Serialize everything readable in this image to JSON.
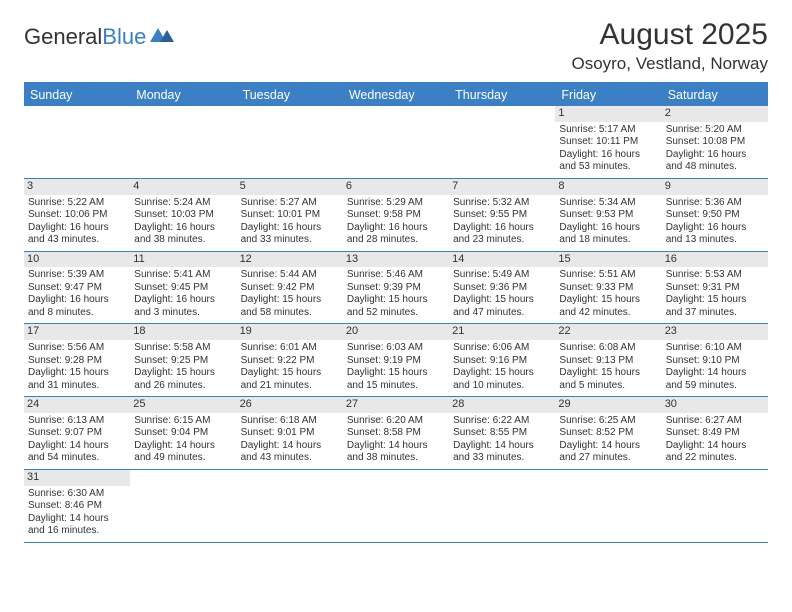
{
  "logo": {
    "general": "General",
    "blue": "Blue"
  },
  "title": "August 2025",
  "location": "Osoyro, Vestland, Norway",
  "dayNames": [
    "Sunday",
    "Monday",
    "Tuesday",
    "Wednesday",
    "Thursday",
    "Friday",
    "Saturday"
  ],
  "colors": {
    "accent": "#3b7fc4",
    "headerText": "#ffffff",
    "dayNumBg": "#e8e8e8",
    "text": "#333333",
    "background": "#ffffff"
  },
  "weeks": [
    [
      null,
      null,
      null,
      null,
      null,
      {
        "n": "1",
        "sr": "5:17 AM",
        "ss": "10:11 PM",
        "dlH": "16",
        "dlM": "53"
      },
      {
        "n": "2",
        "sr": "5:20 AM",
        "ss": "10:08 PM",
        "dlH": "16",
        "dlM": "48"
      }
    ],
    [
      {
        "n": "3",
        "sr": "5:22 AM",
        "ss": "10:06 PM",
        "dlH": "16",
        "dlM": "43"
      },
      {
        "n": "4",
        "sr": "5:24 AM",
        "ss": "10:03 PM",
        "dlH": "16",
        "dlM": "38"
      },
      {
        "n": "5",
        "sr": "5:27 AM",
        "ss": "10:01 PM",
        "dlH": "16",
        "dlM": "33"
      },
      {
        "n": "6",
        "sr": "5:29 AM",
        "ss": "9:58 PM",
        "dlH": "16",
        "dlM": "28"
      },
      {
        "n": "7",
        "sr": "5:32 AM",
        "ss": "9:55 PM",
        "dlH": "16",
        "dlM": "23"
      },
      {
        "n": "8",
        "sr": "5:34 AM",
        "ss": "9:53 PM",
        "dlH": "16",
        "dlM": "18"
      },
      {
        "n": "9",
        "sr": "5:36 AM",
        "ss": "9:50 PM",
        "dlH": "16",
        "dlM": "13"
      }
    ],
    [
      {
        "n": "10",
        "sr": "5:39 AM",
        "ss": "9:47 PM",
        "dlH": "16",
        "dlM": "8"
      },
      {
        "n": "11",
        "sr": "5:41 AM",
        "ss": "9:45 PM",
        "dlH": "16",
        "dlM": "3"
      },
      {
        "n": "12",
        "sr": "5:44 AM",
        "ss": "9:42 PM",
        "dlH": "15",
        "dlM": "58"
      },
      {
        "n": "13",
        "sr": "5:46 AM",
        "ss": "9:39 PM",
        "dlH": "15",
        "dlM": "52"
      },
      {
        "n": "14",
        "sr": "5:49 AM",
        "ss": "9:36 PM",
        "dlH": "15",
        "dlM": "47"
      },
      {
        "n": "15",
        "sr": "5:51 AM",
        "ss": "9:33 PM",
        "dlH": "15",
        "dlM": "42"
      },
      {
        "n": "16",
        "sr": "5:53 AM",
        "ss": "9:31 PM",
        "dlH": "15",
        "dlM": "37"
      }
    ],
    [
      {
        "n": "17",
        "sr": "5:56 AM",
        "ss": "9:28 PM",
        "dlH": "15",
        "dlM": "31"
      },
      {
        "n": "18",
        "sr": "5:58 AM",
        "ss": "9:25 PM",
        "dlH": "15",
        "dlM": "26"
      },
      {
        "n": "19",
        "sr": "6:01 AM",
        "ss": "9:22 PM",
        "dlH": "15",
        "dlM": "21"
      },
      {
        "n": "20",
        "sr": "6:03 AM",
        "ss": "9:19 PM",
        "dlH": "15",
        "dlM": "15"
      },
      {
        "n": "21",
        "sr": "6:06 AM",
        "ss": "9:16 PM",
        "dlH": "15",
        "dlM": "10"
      },
      {
        "n": "22",
        "sr": "6:08 AM",
        "ss": "9:13 PM",
        "dlH": "15",
        "dlM": "5"
      },
      {
        "n": "23",
        "sr": "6:10 AM",
        "ss": "9:10 PM",
        "dlH": "14",
        "dlM": "59"
      }
    ],
    [
      {
        "n": "24",
        "sr": "6:13 AM",
        "ss": "9:07 PM",
        "dlH": "14",
        "dlM": "54"
      },
      {
        "n": "25",
        "sr": "6:15 AM",
        "ss": "9:04 PM",
        "dlH": "14",
        "dlM": "49"
      },
      {
        "n": "26",
        "sr": "6:18 AM",
        "ss": "9:01 PM",
        "dlH": "14",
        "dlM": "43"
      },
      {
        "n": "27",
        "sr": "6:20 AM",
        "ss": "8:58 PM",
        "dlH": "14",
        "dlM": "38"
      },
      {
        "n": "28",
        "sr": "6:22 AM",
        "ss": "8:55 PM",
        "dlH": "14",
        "dlM": "33"
      },
      {
        "n": "29",
        "sr": "6:25 AM",
        "ss": "8:52 PM",
        "dlH": "14",
        "dlM": "27"
      },
      {
        "n": "30",
        "sr": "6:27 AM",
        "ss": "8:49 PM",
        "dlH": "14",
        "dlM": "22"
      }
    ],
    [
      {
        "n": "31",
        "sr": "6:30 AM",
        "ss": "8:46 PM",
        "dlH": "14",
        "dlM": "16"
      },
      null,
      null,
      null,
      null,
      null,
      null
    ]
  ],
  "labels": {
    "sunrise": "Sunrise:",
    "sunset": "Sunset:",
    "daylight": "Daylight:",
    "hours": "hours",
    "and": "and",
    "minutes": "minutes."
  }
}
